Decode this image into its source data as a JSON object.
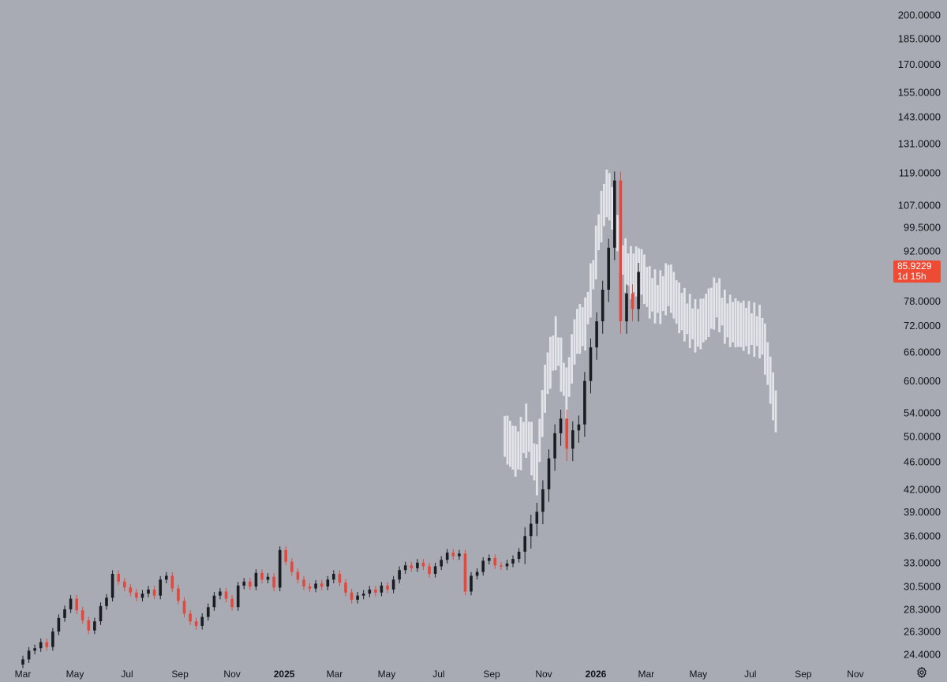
{
  "colors": {
    "background": "#a8abb4",
    "up_candle": "#1b1c22",
    "down_candle": "#e2483c",
    "projection": "#e8eaee",
    "label": "#111319",
    "price_badge": "#ee4b35"
  },
  "price_badge": {
    "price": "85.9229",
    "countdown": "1d 15h"
  },
  "settings_icon": "gear-icon",
  "chart_data": {
    "type": "candlestick",
    "title": "",
    "xlabel": "",
    "ylabel": "",
    "y_scale": "log",
    "ylim": [
      23.2,
      205
    ],
    "grid": false,
    "y_ticks": [
      "200.0000",
      "185.0000",
      "170.0000",
      "155.0000",
      "143.0000",
      "131.0000",
      "119.0000",
      "107.0000",
      "99.5000",
      "92.0000",
      "85.9229",
      "78.0000",
      "72.0000",
      "66.0000",
      "60.0000",
      "54.0000",
      "50.0000",
      "46.0000",
      "42.0000",
      "39.0000",
      "36.0000",
      "33.0000",
      "30.5000",
      "28.3000",
      "26.3000",
      "24.4000"
    ],
    "x_ticks": [
      {
        "label": "Mar",
        "date": "2024-03"
      },
      {
        "label": "May",
        "date": "2024-05"
      },
      {
        "label": "Jul",
        "date": "2024-07"
      },
      {
        "label": "Sep",
        "date": "2024-09"
      },
      {
        "label": "Nov",
        "date": "2024-11"
      },
      {
        "label": "2025",
        "date": "2025-01",
        "bold": true
      },
      {
        "label": "Mar",
        "date": "2025-03"
      },
      {
        "label": "May",
        "date": "2025-05"
      },
      {
        "label": "Jul",
        "date": "2025-07"
      },
      {
        "label": "Sep",
        "date": "2025-09"
      },
      {
        "label": "Nov",
        "date": "2025-11"
      },
      {
        "label": "2026",
        "date": "2026-01",
        "bold": true
      },
      {
        "label": "Mar",
        "date": "2026-03"
      },
      {
        "label": "May",
        "date": "2026-05"
      },
      {
        "label": "Jul",
        "date": "2026-07"
      },
      {
        "label": "Sep",
        "date": "2026-09"
      },
      {
        "label": "Nov",
        "date": "2026-11"
      }
    ],
    "last_price": 85.9229,
    "series": [
      {
        "kind": "weekly_candles",
        "points": [
          [
            "2024-03-01",
            23.6,
            24.0
          ],
          [
            "2024-03-08",
            24.0,
            24.7
          ],
          [
            "2024-03-15",
            24.7,
            24.9
          ],
          [
            "2024-03-22",
            24.9,
            25.4
          ],
          [
            "2024-03-29",
            25.4,
            25.0
          ],
          [
            "2024-04-05",
            25.0,
            26.3
          ],
          [
            "2024-04-12",
            26.3,
            27.5
          ],
          [
            "2024-04-19",
            27.5,
            28.3
          ],
          [
            "2024-04-26",
            28.3,
            29.3
          ],
          [
            "2024-05-03",
            29.3,
            28.2
          ],
          [
            "2024-05-10",
            28.2,
            27.3
          ],
          [
            "2024-05-17",
            27.3,
            26.4
          ],
          [
            "2024-05-24",
            26.4,
            27.2
          ],
          [
            "2024-05-31",
            27.2,
            28.6
          ],
          [
            "2024-06-07",
            28.6,
            29.4
          ],
          [
            "2024-06-14",
            29.4,
            31.8
          ],
          [
            "2024-06-21",
            31.8,
            31.0
          ],
          [
            "2024-06-28",
            31.0,
            30.4
          ],
          [
            "2024-07-05",
            30.4,
            29.9
          ],
          [
            "2024-07-12",
            29.9,
            29.4
          ],
          [
            "2024-07-19",
            29.4,
            29.8
          ],
          [
            "2024-07-26",
            29.8,
            30.2
          ],
          [
            "2024-08-02",
            30.2,
            29.6
          ],
          [
            "2024-08-09",
            29.6,
            31.2
          ],
          [
            "2024-08-16",
            31.2,
            31.6
          ],
          [
            "2024-08-23",
            31.6,
            30.3
          ],
          [
            "2024-08-30",
            30.3,
            29.1
          ],
          [
            "2024-09-06",
            29.1,
            27.9
          ],
          [
            "2024-09-13",
            27.9,
            27.2
          ],
          [
            "2024-09-20",
            27.2,
            26.8
          ],
          [
            "2024-09-27",
            26.8,
            27.6
          ],
          [
            "2024-10-04",
            27.6,
            28.5
          ],
          [
            "2024-10-11",
            28.5,
            29.6
          ],
          [
            "2024-10-18",
            29.6,
            30.0
          ],
          [
            "2024-10-25",
            30.0,
            29.3
          ],
          [
            "2024-11-01",
            29.3,
            28.5
          ],
          [
            "2024-11-08",
            28.5,
            30.6
          ],
          [
            "2024-11-15",
            30.6,
            31.0
          ],
          [
            "2024-11-22",
            31.0,
            30.5
          ],
          [
            "2024-11-29",
            30.5,
            31.9
          ],
          [
            "2024-12-06",
            31.9,
            31.2
          ],
          [
            "2024-12-13",
            31.2,
            31.5
          ],
          [
            "2024-12-20",
            31.5,
            30.4
          ],
          [
            "2024-12-27",
            30.4,
            34.4
          ],
          [
            "2025-01-03",
            34.4,
            33.1
          ],
          [
            "2025-01-10",
            33.1,
            32.0
          ],
          [
            "2025-01-17",
            32.0,
            31.2
          ],
          [
            "2025-01-24",
            31.2,
            30.5
          ],
          [
            "2025-01-31",
            30.5,
            30.3
          ],
          [
            "2025-02-07",
            30.3,
            30.8
          ],
          [
            "2025-02-14",
            30.8,
            30.5
          ],
          [
            "2025-02-21",
            30.5,
            31.2
          ],
          [
            "2025-02-28",
            31.2,
            31.8
          ],
          [
            "2025-03-07",
            31.8,
            30.9
          ],
          [
            "2025-03-14",
            30.9,
            29.9
          ],
          [
            "2025-03-21",
            29.9,
            29.2
          ],
          [
            "2025-03-28",
            29.2,
            29.6
          ],
          [
            "2025-04-04",
            29.6,
            29.8
          ],
          [
            "2025-04-11",
            29.8,
            30.2
          ],
          [
            "2025-04-18",
            30.2,
            29.9
          ],
          [
            "2025-04-25",
            29.9,
            30.6
          ],
          [
            "2025-05-02",
            30.6,
            30.2
          ],
          [
            "2025-05-09",
            30.2,
            31.2
          ],
          [
            "2025-05-16",
            31.2,
            32.2
          ],
          [
            "2025-05-23",
            32.2,
            32.7
          ],
          [
            "2025-05-30",
            32.7,
            32.4
          ],
          [
            "2025-06-06",
            32.4,
            33.0
          ],
          [
            "2025-06-13",
            33.0,
            32.6
          ],
          [
            "2025-06-20",
            32.6,
            31.8
          ],
          [
            "2025-06-27",
            31.8,
            32.6
          ],
          [
            "2025-07-04",
            32.6,
            33.3
          ],
          [
            "2025-07-11",
            33.3,
            34.1
          ],
          [
            "2025-07-18",
            34.1,
            33.7
          ],
          [
            "2025-07-25",
            33.7,
            34.0
          ],
          [
            "2025-08-01",
            34.0,
            30.0
          ],
          [
            "2025-08-08",
            30.0,
            31.6
          ],
          [
            "2025-08-15",
            31.6,
            32.0
          ],
          [
            "2025-08-22",
            32.0,
            33.2
          ],
          [
            "2025-08-29",
            33.2,
            33.5
          ],
          [
            "2025-09-05",
            33.5,
            32.7
          ],
          [
            "2025-09-12",
            32.7,
            32.6
          ],
          [
            "2025-09-19",
            32.6,
            32.9
          ],
          [
            "2025-09-26",
            32.9,
            33.4
          ],
          [
            "2025-10-03",
            33.4,
            34.2
          ]
        ]
      }
    ]
  }
}
